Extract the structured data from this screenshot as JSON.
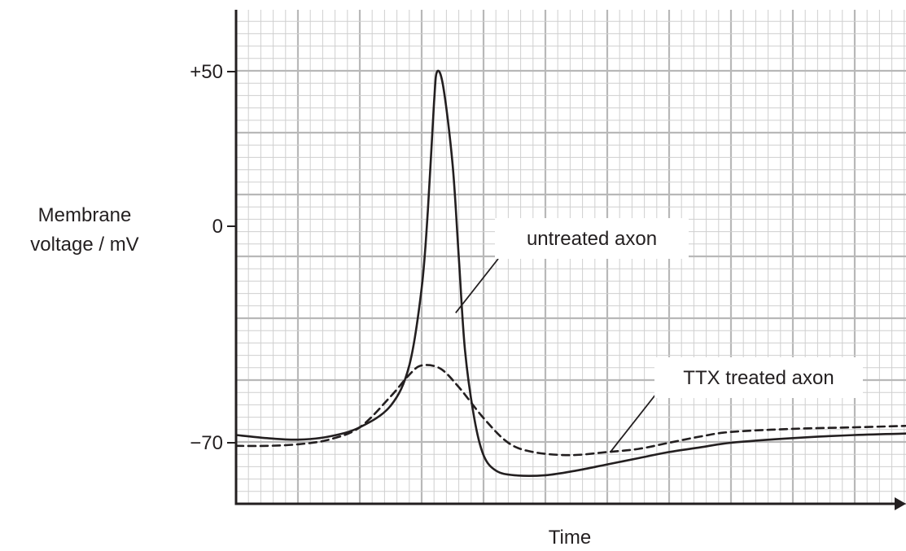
{
  "chart_data": {
    "type": "line",
    "title": "",
    "ylabel_lines": [
      "Membrane",
      "voltage / mV"
    ],
    "xlabel": "Time",
    "y_ticks": [
      {
        "value": 50,
        "label": "+50"
      },
      {
        "value": 0,
        "label": "0"
      },
      {
        "value": -70,
        "label": "−70"
      }
    ],
    "x_ticks": [],
    "grid": true,
    "colors": {
      "axis": "#231f20",
      "grid_minor": "#cfcfcf",
      "grid_major": "#b8b8b8",
      "line": "#231f20"
    },
    "series": [
      {
        "name": "untreated axon",
        "style": "solid",
        "points": [
          [
            0.0,
            -67.5
          ],
          [
            0.5,
            -68.5
          ],
          [
            1.0,
            -69.0
          ],
          [
            1.5,
            -68.0
          ],
          [
            2.0,
            -65.0
          ],
          [
            2.5,
            -58.0
          ],
          [
            2.8,
            -45.0
          ],
          [
            3.0,
            -20.0
          ],
          [
            3.1,
            5.0
          ],
          [
            3.2,
            40.0
          ],
          [
            3.25,
            50.0
          ],
          [
            3.35,
            45.0
          ],
          [
            3.5,
            20.0
          ],
          [
            3.6,
            -10.0
          ],
          [
            3.7,
            -40.0
          ],
          [
            3.85,
            -62.0
          ],
          [
            4.0,
            -74.0
          ],
          [
            4.2,
            -79.0
          ],
          [
            4.5,
            -80.5
          ],
          [
            5.0,
            -80.5
          ],
          [
            5.5,
            -79.0
          ],
          [
            6.0,
            -77.0
          ],
          [
            6.5,
            -75.0
          ],
          [
            7.0,
            -73.0
          ],
          [
            7.5,
            -71.5
          ],
          [
            8.0,
            -70.0
          ],
          [
            9.0,
            -68.5
          ],
          [
            10.0,
            -67.5
          ],
          [
            10.9,
            -67.0
          ]
        ]
      },
      {
        "name": "TTX treated axon",
        "style": "dashed",
        "points": [
          [
            0.0,
            -71.0
          ],
          [
            0.5,
            -71.0
          ],
          [
            1.0,
            -70.5
          ],
          [
            1.5,
            -69.0
          ],
          [
            2.0,
            -65.0
          ],
          [
            2.5,
            -55.0
          ],
          [
            2.8,
            -48.0
          ],
          [
            3.0,
            -45.0
          ],
          [
            3.3,
            -46.0
          ],
          [
            3.6,
            -52.0
          ],
          [
            4.0,
            -62.0
          ],
          [
            4.4,
            -70.0
          ],
          [
            4.8,
            -73.0
          ],
          [
            5.4,
            -74.0
          ],
          [
            6.0,
            -73.0
          ],
          [
            6.5,
            -72.0
          ],
          [
            7.0,
            -70.0
          ],
          [
            7.5,
            -68.0
          ],
          [
            8.0,
            -66.5
          ],
          [
            9.0,
            -65.5
          ],
          [
            10.0,
            -65.0
          ],
          [
            10.9,
            -64.5
          ]
        ]
      }
    ],
    "annotations": [
      {
        "text": "untreated axon",
        "series": 0,
        "at": [
          3.55,
          -28.0
        ]
      },
      {
        "text": "TTX treated axon",
        "series": 1,
        "at": [
          6.05,
          -73.0
        ]
      }
    ]
  }
}
